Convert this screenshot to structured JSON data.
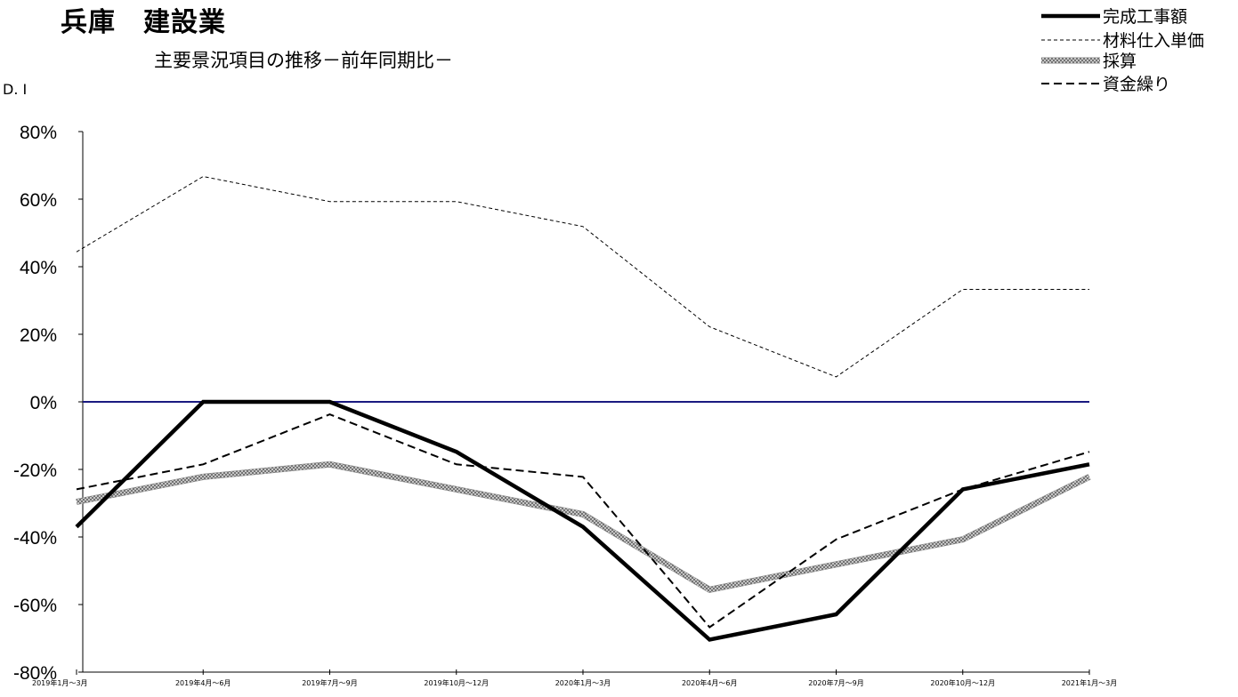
{
  "chart_data": {
    "type": "line",
    "title": "兵庫　建設業",
    "subtitle": "主要景況項目の推移－前年同期比－",
    "ylabel": "D. I",
    "xlabel": "",
    "categories": [
      "2019年1月～3月",
      "2019年4月～6月",
      "2019年7月～9月",
      "2019年10月～12月",
      "2020年1月～3月",
      "2020年4月～6月",
      "2020年7月～9月",
      "2020年10月～12月",
      "2021年1月～3月"
    ],
    "ylim": [
      -80,
      80
    ],
    "yticks": [
      80,
      60,
      40,
      20,
      0,
      -20,
      -40,
      -60,
      -80
    ],
    "ytick_labels": [
      "80%",
      "60%",
      "40%",
      "20%",
      "0%",
      "-20%",
      "-40%",
      "-60%",
      "-80%"
    ],
    "zero_line_color": "#1a1a80",
    "legend_position": "top-right",
    "grid": false,
    "series": [
      {
        "name": "完成工事額",
        "style": "thick-solid",
        "color": "#000000",
        "values": [
          -37,
          0,
          0,
          -14.8,
          -37,
          -70.4,
          -62.9,
          -25.9,
          -18.5
        ]
      },
      {
        "name": "材料仕入単価",
        "style": "thin-dashed",
        "color": "#000000",
        "values": [
          44.4,
          66.7,
          59.3,
          59.3,
          51.9,
          22.2,
          7.4,
          33.3,
          33.3
        ]
      },
      {
        "name": "採算",
        "style": "hatched",
        "color": "#9a9a9a",
        "values": [
          -29.6,
          -22.2,
          -18.5,
          -25.9,
          -33.3,
          -55.6,
          -48.1,
          -40.7,
          -22.2
        ]
      },
      {
        "name": "資金繰り",
        "style": "dashed",
        "color": "#000000",
        "values": [
          -25.9,
          -18.5,
          -3.7,
          -18.5,
          -22.2,
          -66.7,
          -40.7,
          -25.9,
          -14.8
        ]
      }
    ]
  }
}
